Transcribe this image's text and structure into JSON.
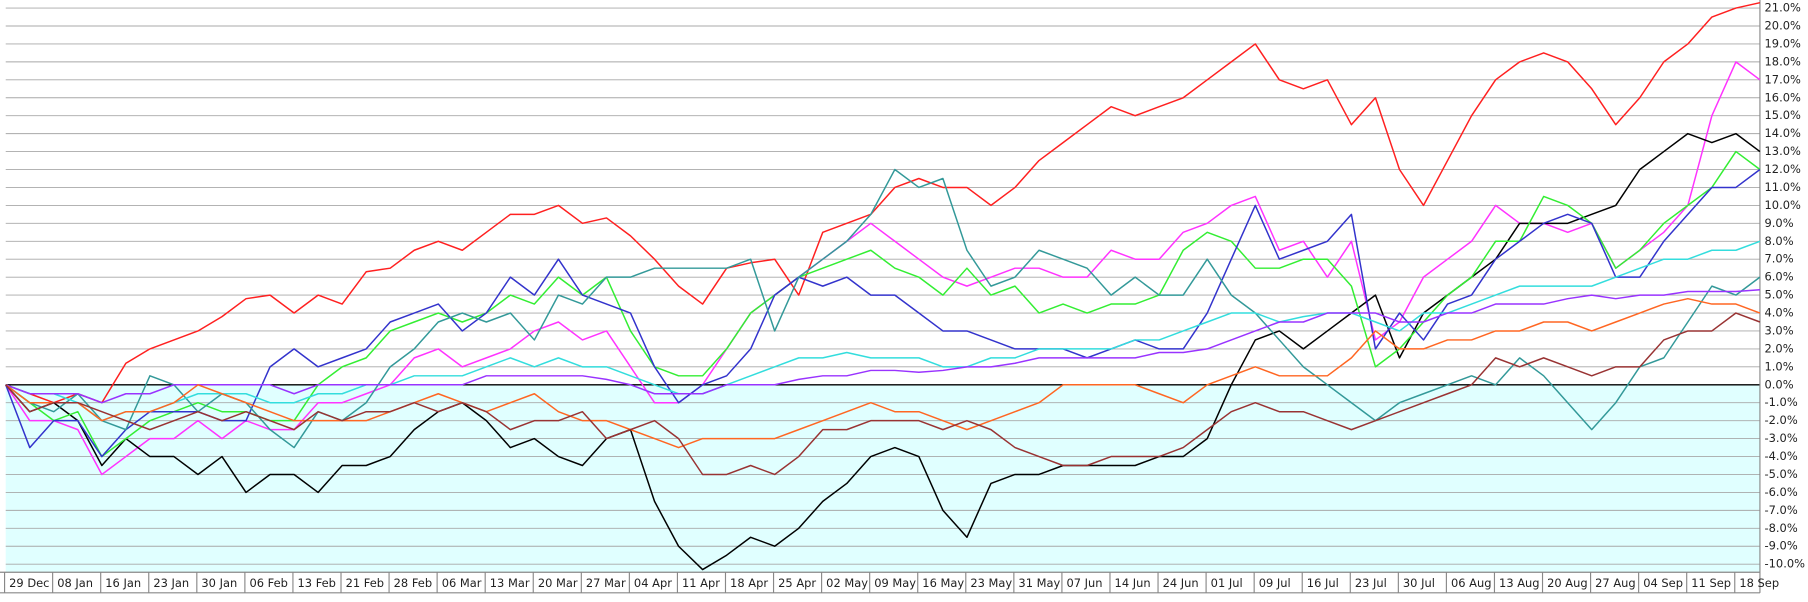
{
  "chart_data": {
    "type": "line",
    "grid": true,
    "categories": [
      "29 Dec",
      null,
      "08 Jan",
      null,
      "16 Jan",
      null,
      "23 Jan",
      null,
      "30 Jan",
      null,
      "06 Feb",
      null,
      "13 Feb",
      null,
      "21 Feb",
      null,
      "28 Feb",
      null,
      "06 Mar",
      null,
      "13 Mar",
      null,
      "20 Mar",
      null,
      "27 Mar",
      null,
      "04 Apr",
      null,
      "11 Apr",
      null,
      "18 Apr",
      null,
      "25 Apr",
      null,
      "02 May",
      null,
      "09 May",
      null,
      "16 May",
      null,
      "23 May",
      null,
      "31 May",
      null,
      "07 Jun",
      null,
      "14 Jun",
      null,
      "24 Jun",
      null,
      "01 Jul",
      null,
      "09 Jul",
      null,
      "16 Jul",
      null,
      "23 Jul",
      null,
      "30 Jul",
      null,
      "06 Aug",
      null,
      "13 Aug",
      null,
      "20 Aug",
      null,
      "27 Aug",
      null,
      "04 Sep",
      null,
      "11 Sep",
      null,
      "18 Sep",
      null
    ],
    "ylim": [
      -10.45,
      21.45
    ],
    "yticks": [
      {
        "value": -10,
        "label": "-10.0%"
      },
      {
        "value": -9,
        "label": "-9.0%"
      },
      {
        "value": -8,
        "label": "-8.0%"
      },
      {
        "value": -7,
        "label": "-7.0%"
      },
      {
        "value": -6,
        "label": "-6.0%"
      },
      {
        "value": -5,
        "label": "-5.0%"
      },
      {
        "value": -4,
        "label": "-4.0%"
      },
      {
        "value": -3,
        "label": "-3.0%"
      },
      {
        "value": -2,
        "label": "-2.0%"
      },
      {
        "value": -1,
        "label": "-1.0%"
      },
      {
        "value": 0,
        "label": "0.0%"
      },
      {
        "value": 1,
        "label": "1.0%"
      },
      {
        "value": 2,
        "label": "2.0%"
      },
      {
        "value": 3,
        "label": "3.0%"
      },
      {
        "value": 4,
        "label": "4.0%"
      },
      {
        "value": 5,
        "label": "5.0%"
      },
      {
        "value": 6,
        "label": "6.0%"
      },
      {
        "value": 7,
        "label": "7.0%"
      },
      {
        "value": 8,
        "label": "8.0%"
      },
      {
        "value": 9,
        "label": "9.0%"
      },
      {
        "value": 10,
        "label": "10.0%"
      },
      {
        "value": 11,
        "label": "11.0%"
      },
      {
        "value": 12,
        "label": "12.0%"
      },
      {
        "value": 13,
        "label": "13.0%"
      },
      {
        "value": 14,
        "label": "14.0%"
      },
      {
        "value": 15,
        "label": "15.0%"
      },
      {
        "value": 16,
        "label": "16.0%"
      },
      {
        "value": 17,
        "label": "17.0%"
      },
      {
        "value": 18,
        "label": "18.0%"
      },
      {
        "value": 19,
        "label": "19.0%"
      },
      {
        "value": 20,
        "label": "20.0%"
      },
      {
        "value": 21,
        "label": "21.0%"
      }
    ],
    "series": [
      {
        "color": "#ff2020",
        "values": [
          0,
          -0.5,
          -1,
          -0.5,
          -1,
          1.2,
          2,
          2.5,
          3,
          3.8,
          4.8,
          5,
          4,
          5,
          4.5,
          6.3,
          6.5,
          7.5,
          8,
          7.5,
          8.5,
          9.5,
          9.5,
          10,
          9,
          9.3,
          8.3,
          7,
          5.5,
          4.5,
          6.5,
          6.8,
          7,
          5,
          8.5,
          9,
          9.5,
          11,
          11.5,
          11,
          11,
          10,
          11,
          12.5,
          13.5,
          14.5,
          15.5,
          15,
          15.5,
          16,
          17,
          18,
          19,
          17,
          16.5,
          17,
          14.5,
          16,
          12,
          10,
          12.5,
          15,
          17,
          18,
          18.5,
          18,
          16.5,
          14.5,
          16,
          18,
          19,
          20.5,
          21,
          21.3
        ]
      },
      {
        "color": "#ff33ff",
        "values": [
          0,
          -2,
          -2,
          -2.5,
          -5,
          -4,
          -3,
          -3,
          -2,
          -3,
          -2,
          -2.5,
          -2.5,
          -1,
          -1,
          -0.5,
          0,
          1.5,
          2,
          1,
          1.5,
          2,
          3,
          3.5,
          2.5,
          3,
          1,
          -1,
          -1,
          0,
          2,
          4,
          5,
          6,
          7,
          8,
          9,
          8,
          7,
          6,
          5.5,
          6,
          6.5,
          6.5,
          6,
          6,
          7.5,
          7,
          7,
          8.5,
          9,
          10,
          10.5,
          7.5,
          8,
          6,
          8,
          2.5,
          3.5,
          6,
          7,
          8,
          10,
          9,
          9,
          8.5,
          9,
          6.5,
          7.5,
          8.5,
          10,
          15,
          18,
          17
        ]
      },
      {
        "color": "#000000",
        "values": [
          0,
          -1.5,
          -1,
          -2,
          -4.5,
          -3,
          -4,
          -4,
          -5,
          -4,
          -6,
          -5,
          -5,
          -6,
          -4.5,
          -4.5,
          -4,
          -2.5,
          -1.5,
          -1,
          -2,
          -3.5,
          -3,
          -4,
          -4.5,
          -3,
          -2.5,
          -6.5,
          -9,
          -10.3,
          -9.5,
          -8.5,
          -9,
          -8,
          -6.5,
          -5.5,
          -4,
          -3.5,
          -4,
          -7,
          -8.5,
          -5.5,
          -5,
          -5,
          -4.5,
          -4.5,
          -4.5,
          -4.5,
          -4,
          -4,
          -3,
          0,
          2.5,
          3,
          2,
          3,
          4,
          5,
          1.5,
          4,
          5,
          6,
          7,
          9,
          9,
          9,
          9.5,
          10,
          12,
          13,
          14,
          13.5,
          14,
          13
        ]
      },
      {
        "color": "#33ee33",
        "values": [
          0,
          -1,
          -2,
          -1.5,
          -4,
          -3,
          -2,
          -1.5,
          -1,
          -1.5,
          -1.5,
          -2,
          -2,
          0,
          1,
          1.5,
          3,
          3.5,
          4,
          3.5,
          4,
          5,
          4.5,
          6,
          5,
          6,
          3,
          1,
          0.5,
          0.5,
          2,
          4,
          5,
          6,
          6.5,
          7,
          7.5,
          6.5,
          6,
          5,
          6.5,
          5,
          5.5,
          4,
          4.5,
          4,
          4.5,
          4.5,
          5,
          7.5,
          8.5,
          8,
          6.5,
          6.5,
          7,
          7,
          5.5,
          1,
          2,
          3.5,
          5,
          6,
          8,
          8,
          10.5,
          10,
          9,
          6.5,
          7.5,
          9,
          10,
          11,
          13,
          12
        ]
      },
      {
        "color": "#3333cc",
        "values": [
          0,
          -3.5,
          -2,
          -2,
          -4,
          -2.5,
          -1.5,
          -1.5,
          -1.5,
          -2,
          -2,
          1,
          2,
          1,
          1.5,
          2,
          3.5,
          4,
          4.5,
          3,
          4,
          6,
          5,
          7,
          5,
          4.5,
          4,
          1,
          -1,
          0,
          0.5,
          2,
          5,
          6,
          5.5,
          6,
          5,
          5,
          4,
          3,
          3,
          2.5,
          2,
          2,
          2,
          1.5,
          2,
          2.5,
          2,
          2,
          4,
          7,
          10,
          7,
          7.5,
          8,
          9.5,
          2,
          4,
          2.5,
          4.5,
          5,
          7,
          8,
          9,
          9.5,
          9,
          6,
          6,
          8,
          9.5,
          11,
          11,
          12
        ]
      },
      {
        "color": "#339999",
        "values": [
          0,
          -1,
          -1.5,
          -0.5,
          -2,
          -2.5,
          0.5,
          0,
          -1.5,
          -0.5,
          -1,
          -2.5,
          -3.5,
          -1.5,
          -2,
          -1,
          1,
          2,
          3.5,
          4,
          3.5,
          4,
          2.5,
          5,
          4.5,
          6,
          6,
          6.5,
          6.5,
          6.5,
          6.5,
          7,
          3,
          6,
          7,
          8,
          9.5,
          12,
          11,
          11.5,
          7.5,
          5.5,
          6,
          7.5,
          7,
          6.5,
          5,
          6,
          5,
          5,
          7,
          5,
          4,
          2.5,
          1,
          0,
          -1,
          -2,
          -1,
          -0.5,
          0,
          0.5,
          0,
          1.5,
          0.5,
          -1,
          -2.5,
          -1,
          1,
          1.5,
          3.5,
          5.5,
          5,
          6
        ]
      },
      {
        "color": "#33dddd",
        "values": [
          0,
          -0.5,
          -0.5,
          -1,
          -2,
          -1.5,
          -1.5,
          -1,
          -0.5,
          -0.5,
          -0.5,
          -1,
          -1,
          -0.5,
          -0.5,
          0,
          0,
          0.5,
          0.5,
          0.5,
          1,
          1.5,
          1,
          1.5,
          1,
          1,
          0.5,
          0,
          -0.5,
          -0.5,
          0,
          0.5,
          1,
          1.5,
          1.5,
          1.8,
          1.5,
          1.5,
          1.5,
          1,
          1,
          1.5,
          1.5,
          2,
          2,
          2,
          2,
          2.5,
          2.5,
          3,
          3.5,
          4,
          4,
          3.5,
          3.8,
          4,
          4,
          3.5,
          3,
          4,
          4,
          4.5,
          5,
          5.5,
          5.5,
          5.5,
          5.5,
          6,
          6.5,
          7,
          7,
          7.5,
          7.5,
          8
        ]
      },
      {
        "color": "#9933ff",
        "values": [
          0,
          -0.5,
          -0.5,
          -0.5,
          -1,
          -0.5,
          -0.5,
          0,
          0,
          0,
          0,
          0,
          -0.5,
          0,
          0,
          0,
          0,
          0,
          0,
          0,
          0.5,
          0.5,
          0.5,
          0.5,
          0.5,
          0.3,
          0,
          -0.5,
          -0.5,
          -0.5,
          0,
          0,
          0,
          0.3,
          0.5,
          0.5,
          0.8,
          0.8,
          0.7,
          0.8,
          1,
          1,
          1.2,
          1.5,
          1.5,
          1.5,
          1.5,
          1.5,
          1.8,
          1.8,
          2,
          2.5,
          3,
          3.5,
          3.5,
          4,
          4,
          4,
          3.5,
          3.5,
          4,
          4,
          4.5,
          4.5,
          4.5,
          4.8,
          5,
          4.8,
          5,
          5,
          5.2,
          5.2,
          5.2,
          5.3
        ]
      },
      {
        "color": "#ff6622",
        "values": [
          0,
          -1,
          -1,
          -1,
          -2,
          -1.5,
          -1.5,
          -1,
          0,
          -0.5,
          -1,
          -1.5,
          -2,
          -2,
          -2,
          -2,
          -1.5,
          -1,
          -0.5,
          -1,
          -1.5,
          -1,
          -0.5,
          -1.5,
          -2,
          -2,
          -2.5,
          -3,
          -3.5,
          -3,
          -3,
          -3,
          -3,
          -2.5,
          -2,
          -1.5,
          -1,
          -1.5,
          -1.5,
          -2,
          -2.5,
          -2,
          -1.5,
          -1,
          0,
          0,
          0,
          0,
          -0.5,
          -1,
          0,
          0.5,
          1,
          0.5,
          0.5,
          0.5,
          1.5,
          3,
          2,
          2,
          2.5,
          2.5,
          3,
          3,
          3.5,
          3.5,
          3,
          3.5,
          4,
          4.5,
          4.8,
          4.5,
          4.5,
          4
        ]
      },
      {
        "color": "#993333",
        "values": [
          0,
          -1.5,
          -1,
          -1,
          -1.5,
          -2,
          -2.5,
          -2,
          -1.5,
          -2,
          -1.5,
          -2,
          -2.5,
          -1.5,
          -2,
          -1.5,
          -1.5,
          -1,
          -1.5,
          -1,
          -1.5,
          -2.5,
          -2,
          -2,
          -1.5,
          -3,
          -2.5,
          -2,
          -3,
          -5,
          -5,
          -4.5,
          -5,
          -4,
          -2.5,
          -2.5,
          -2,
          -2,
          -2,
          -2.5,
          -2,
          -2.5,
          -3.5,
          -4,
          -4.5,
          -4.5,
          -4,
          -4,
          -4,
          -3.5,
          -2.5,
          -1.5,
          -1,
          -1.5,
          -1.5,
          -2,
          -2.5,
          -2,
          -1.5,
          -1,
          -0.5,
          0,
          1.5,
          1,
          1.5,
          1,
          0.5,
          1,
          1,
          2.5,
          3,
          3,
          4,
          3.5
        ]
      }
    ]
  }
}
